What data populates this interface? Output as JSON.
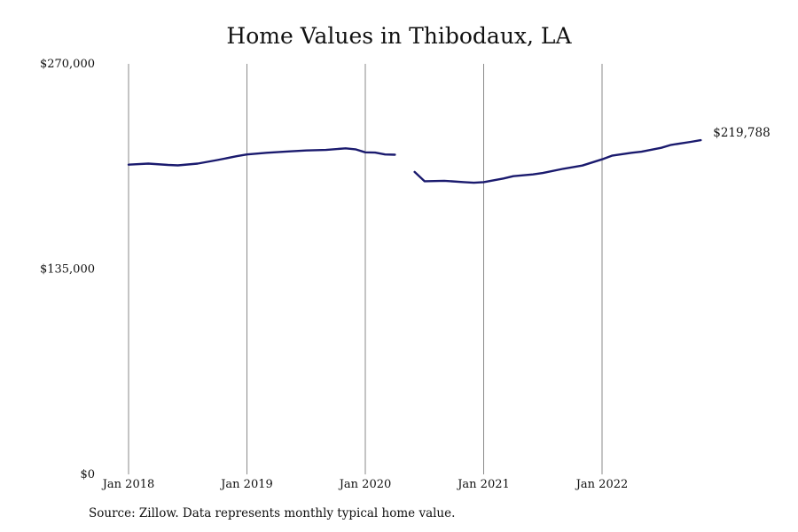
{
  "chart_data": {
    "type": "line",
    "title": "Home Values in Thibodaux, LA",
    "xlabel": "",
    "ylabel": "",
    "ylim": [
      0,
      270000
    ],
    "y_ticks": [
      {
        "value": 0,
        "label": "$0"
      },
      {
        "value": 135000,
        "label": "$135,000"
      },
      {
        "value": 270000,
        "label": "$270,000"
      }
    ],
    "x_ticks": [
      {
        "date": "2018-01",
        "label": "Jan 2018"
      },
      {
        "date": "2019-01",
        "label": "Jan 2019"
      },
      {
        "date": "2020-01",
        "label": "Jan 2020"
      },
      {
        "date": "2021-01",
        "label": "Jan 2021"
      },
      {
        "date": "2022-01",
        "label": "Jan 2022"
      }
    ],
    "grid": "vertical",
    "line_color": "#1a1a6e",
    "end_label": "$219,788",
    "series": [
      {
        "segments": [
          [
            {
              "x": "2018-01",
              "y": 203700
            },
            {
              "x": "2018-03",
              "y": 204400
            },
            {
              "x": "2018-05",
              "y": 203500
            },
            {
              "x": "2018-06",
              "y": 203200
            },
            {
              "x": "2018-08",
              "y": 204400
            },
            {
              "x": "2018-10",
              "y": 206700
            },
            {
              "x": "2018-12",
              "y": 209300
            },
            {
              "x": "2019-01",
              "y": 210400
            },
            {
              "x": "2019-03",
              "y": 211500
            },
            {
              "x": "2019-05",
              "y": 212300
            },
            {
              "x": "2019-07",
              "y": 213000
            },
            {
              "x": "2019-09",
              "y": 213400
            },
            {
              "x": "2019-11",
              "y": 214400
            },
            {
              "x": "2019-12",
              "y": 213800
            },
            {
              "x": "2020-01",
              "y": 211800
            },
            {
              "x": "2020-02",
              "y": 211600
            },
            {
              "x": "2020-03",
              "y": 210400
            },
            {
              "x": "2020-04",
              "y": 210200
            }
          ],
          [
            {
              "x": "2020-06",
              "y": 198900
            },
            {
              "x": "2020-07",
              "y": 192800
            },
            {
              "x": "2020-09",
              "y": 193100
            },
            {
              "x": "2020-11",
              "y": 192200
            },
            {
              "x": "2020-12",
              "y": 191800
            },
            {
              "x": "2021-01",
              "y": 192200
            },
            {
              "x": "2021-03",
              "y": 194600
            },
            {
              "x": "2021-04",
              "y": 196100
            },
            {
              "x": "2021-06",
              "y": 197300
            },
            {
              "x": "2021-07",
              "y": 198200
            },
            {
              "x": "2021-09",
              "y": 200900
            },
            {
              "x": "2021-11",
              "y": 203100
            },
            {
              "x": "2022-01",
              "y": 207200
            },
            {
              "x": "2022-02",
              "y": 209600
            },
            {
              "x": "2022-04",
              "y": 211500
            },
            {
              "x": "2022-05",
              "y": 212200
            },
            {
              "x": "2022-07",
              "y": 214800
            },
            {
              "x": "2022-08",
              "y": 216700
            },
            {
              "x": "2022-10",
              "y": 218700
            },
            {
              "x": "2022-11",
              "y": 219788
            }
          ]
        ]
      }
    ]
  },
  "source_note": "Source: Zillow. Data represents monthly typical home value."
}
